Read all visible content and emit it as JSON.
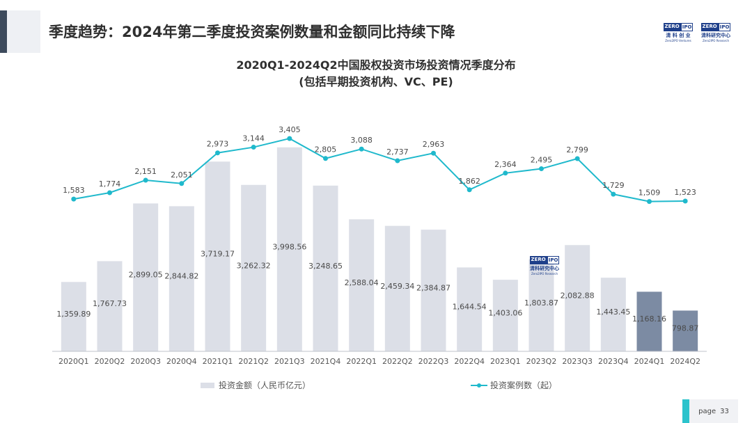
{
  "page": {
    "heading": "季度趋势：2024年第二季度投资案例数量和金额同比持续下降",
    "logos": [
      {
        "mark_left": "ZERO",
        "mark_right": "IPO",
        "cn": "清 科 创 业",
        "en": "Zero2IPO Ventures"
      },
      {
        "mark_left": "ZERO",
        "mark_right": "IPO",
        "cn": "清科研究中心",
        "en": "Zero2IPO Research"
      }
    ],
    "watermark": {
      "mark_left": "ZERO",
      "mark_right": "IPO",
      "cn": "清科研究中心",
      "en": "Zero2IPO Research"
    },
    "footer": {
      "label": "page",
      "number": "33"
    }
  },
  "chart_data": {
    "type": "bar",
    "title": "2020Q1-2024Q2中国股权投资市场投资情况季度分布",
    "subtitle": "(包括早期投资机构、VC、PE)",
    "categories": [
      "2020Q1",
      "2020Q2",
      "2020Q3",
      "2020Q4",
      "2021Q1",
      "2021Q2",
      "2021Q3",
      "2021Q4",
      "2022Q1",
      "2022Q2",
      "2022Q3",
      "2022Q4",
      "2023Q1",
      "2023Q2",
      "2023Q3",
      "2023Q4",
      "2024Q1",
      "2024Q2"
    ],
    "series": [
      {
        "name": "投资金额（人民币亿元）",
        "type": "bar",
        "values": [
          1359.89,
          1767.73,
          2899.05,
          2844.82,
          3719.17,
          3262.32,
          3998.56,
          3248.65,
          2588.04,
          2459.34,
          2384.87,
          1644.54,
          1403.06,
          1803.87,
          2082.88,
          1443.45,
          1168.16,
          798.87
        ],
        "labels": [
          "1,359.89",
          "1,767.73",
          "2,899.05",
          "2,844.82",
          "3,719.17",
          "3,262.32",
          "3,998.56",
          "3,248.65",
          "2,588.04",
          "2,459.34",
          "2,384.87",
          "1,644.54",
          "1,403.06",
          "1,803.87",
          "2,082.88",
          "1,443.45",
          "1,168.16",
          "798.87"
        ],
        "color": "#dcdfe7",
        "highlight_color": "#7c8ba3",
        "highlight_categories": [
          "2024Q1",
          "2024Q2"
        ]
      },
      {
        "name": "投资案例数（起）",
        "type": "line",
        "values": [
          1583,
          1774,
          2151,
          2051,
          2973,
          3144,
          3405,
          2805,
          3088,
          2737,
          2963,
          1862,
          2364,
          2495,
          2799,
          1729,
          1509,
          1523
        ],
        "labels": [
          "1,583",
          "1,774",
          "2,151",
          "2,051",
          "2,973",
          "3,144",
          "3,405",
          "2,805",
          "3,088",
          "2,737",
          "2,963",
          "1,862",
          "2,364",
          "2,495",
          "2,799",
          "1,729",
          "1,509",
          "1,523"
        ],
        "color": "#1fb9cc"
      }
    ],
    "bar_ylim": [
      0,
      4500
    ],
    "line_ylim": [
      -3000,
      3700
    ],
    "grid": false,
    "legend_position": "bottom"
  }
}
